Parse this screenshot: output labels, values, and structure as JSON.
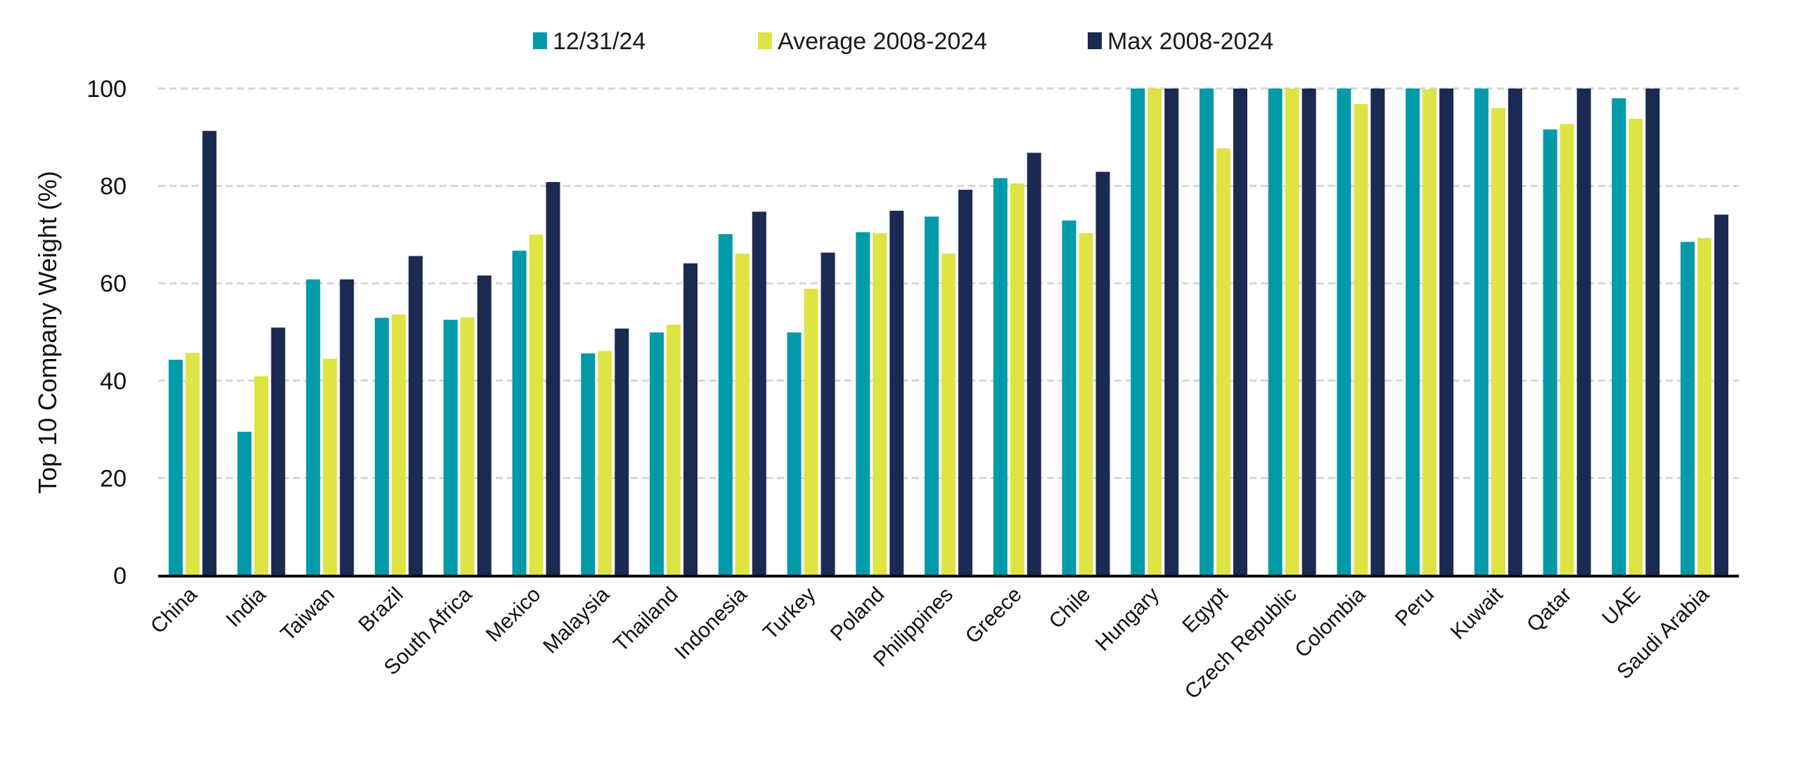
{
  "chart_data": {
    "type": "bar",
    "title": "",
    "xlabel": "",
    "ylabel": "Top 10 Company Weight (%)",
    "ylim": [
      0,
      100
    ],
    "yticks": [
      0,
      20,
      40,
      60,
      80,
      100
    ],
    "grid": true,
    "legend_position": "top",
    "categories": [
      "China",
      "India",
      "Taiwan",
      "Brazil",
      "South Africa",
      "Mexico",
      "Malaysia",
      "Thailand",
      "Indonesia",
      "Turkey",
      "Poland",
      "Philippines",
      "Greece",
      "Chile",
      "Hungary",
      "Egypt",
      "Czech Republic",
      "Colombia",
      "Peru",
      "Kuwait",
      "Qatar",
      "UAE",
      "Saudi Arabia"
    ],
    "series": [
      {
        "name": "12/31/24",
        "color": "#009aa8",
        "values": [
          44.3,
          29.5,
          60.8,
          52.9,
          52.5,
          66.7,
          45.6,
          49.9,
          70.1,
          49.9,
          70.5,
          73.7,
          81.6,
          72.9,
          100,
          100,
          100,
          100,
          100,
          100,
          91.6,
          98.0,
          68.5
        ]
      },
      {
        "name": "Average 2008-2024",
        "color": "#dde444",
        "values": [
          45.7,
          40.9,
          44.5,
          53.6,
          53.0,
          70.0,
          46.1,
          51.5,
          66.1,
          58.9,
          70.3,
          66.1,
          80.5,
          70.3,
          100,
          87.7,
          100,
          96.8,
          99.8,
          96.0,
          92.7,
          93.8,
          69.3
        ]
      },
      {
        "name": "Max 2008-2024",
        "color": "#1b2a52",
        "values": [
          91.3,
          50.9,
          60.8,
          65.6,
          61.6,
          80.8,
          50.7,
          64.1,
          74.7,
          66.3,
          74.9,
          79.2,
          86.8,
          82.9,
          100,
          100,
          100,
          100,
          100,
          100,
          100,
          100,
          74.1
        ]
      }
    ]
  }
}
